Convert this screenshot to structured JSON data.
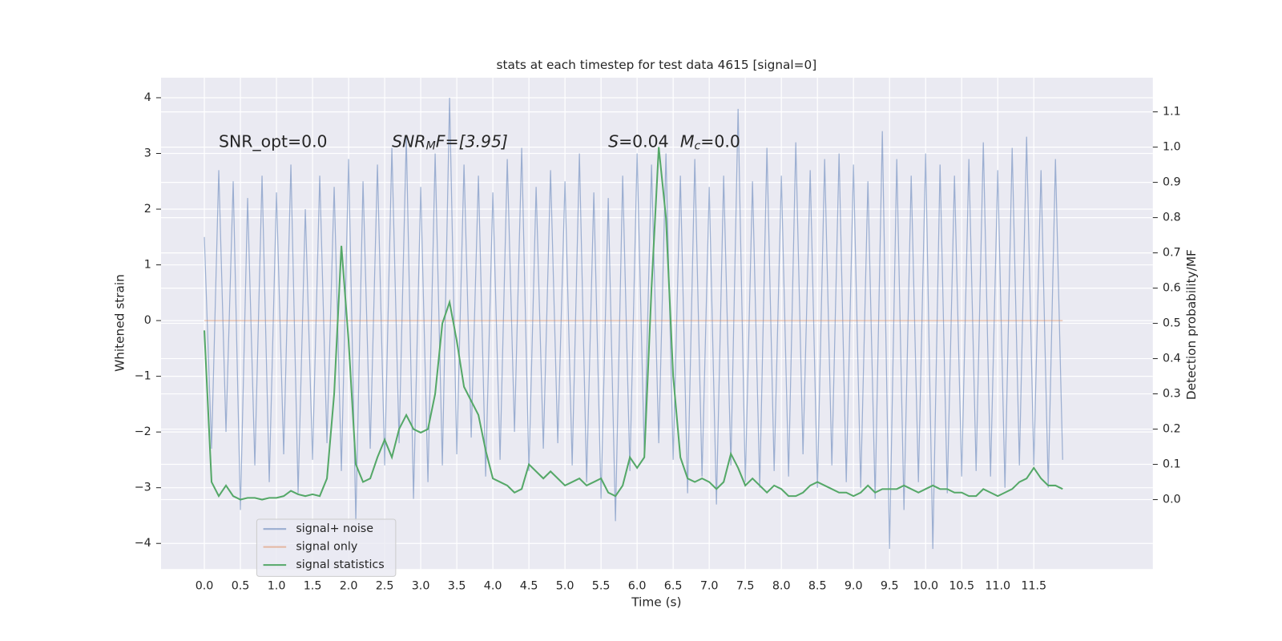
{
  "chart_data": {
    "type": "line",
    "title": "stats at each timestep for test data 4615 [signal=0]",
    "xlabel": "Time (s)",
    "ylabel": "Whitened strain",
    "y2label": "Detection probability/MF",
    "annotations": [
      {
        "parts": [
          "SNR_opt=0.0"
        ],
        "x": 0.2,
        "y": 3.2
      },
      {
        "parts": [
          "SNR",
          "M",
          "F=[3.95]"
        ],
        "x": 2.6,
        "y": 3.2
      },
      {
        "parts": [
          "S",
          "=0.04",
          "M",
          "c",
          "=0.0"
        ],
        "x": 5.6,
        "y": 3.2
      }
    ],
    "x": [
      0.0,
      0.1,
      0.2,
      0.3,
      0.4,
      0.5,
      0.6,
      0.7,
      0.8,
      0.9,
      1.0,
      1.1,
      1.2,
      1.3,
      1.4,
      1.5,
      1.6,
      1.7,
      1.8,
      1.9,
      2.0,
      2.1,
      2.2,
      2.3,
      2.4,
      2.5,
      2.6,
      2.7,
      2.8,
      2.9,
      3.0,
      3.1,
      3.2,
      3.3,
      3.4,
      3.5,
      3.6,
      3.7,
      3.8,
      3.9,
      4.0,
      4.1,
      4.2,
      4.3,
      4.4,
      4.5,
      4.6,
      4.7,
      4.8,
      4.9,
      5.0,
      5.1,
      5.2,
      5.3,
      5.4,
      5.5,
      5.6,
      5.7,
      5.8,
      5.9,
      6.0,
      6.1,
      6.2,
      6.3,
      6.4,
      6.5,
      6.6,
      6.7,
      6.8,
      6.9,
      7.0,
      7.1,
      7.2,
      7.3,
      7.4,
      7.5,
      7.6,
      7.7,
      7.8,
      7.9,
      8.0,
      8.1,
      8.2,
      8.3,
      8.4,
      8.5,
      8.6,
      8.7,
      8.8,
      8.9,
      9.0,
      9.1,
      9.2,
      9.3,
      9.4,
      9.5,
      9.6,
      9.7,
      9.8,
      9.9,
      10.0,
      10.1,
      10.2,
      10.3,
      10.4,
      10.5,
      10.6,
      10.7,
      10.8,
      10.9,
      11.0,
      11.1,
      11.2,
      11.3,
      11.4,
      11.5,
      11.6,
      11.7,
      11.8,
      11.9
    ],
    "series": [
      {
        "name": "signal+ noise",
        "color": "#4c72b0",
        "alpha": 0.5,
        "values": [
          1.5,
          -2.3,
          2.7,
          -2.0,
          2.5,
          -3.4,
          2.2,
          -2.6,
          2.6,
          -2.9,
          2.3,
          -2.4,
          2.8,
          -3.1,
          2.0,
          -2.5,
          2.6,
          -2.2,
          2.4,
          -2.7,
          2.9,
          -3.6,
          2.5,
          -2.3,
          2.8,
          -2.6,
          3.1,
          -2.2,
          3.3,
          -3.2,
          2.4,
          -2.9,
          3.0,
          -2.6,
          4.0,
          -2.4,
          2.8,
          -2.1,
          2.6,
          -2.8,
          2.3,
          -2.5,
          2.9,
          -2.0,
          3.1,
          -2.7,
          2.4,
          -2.3,
          2.7,
          -2.2,
          2.5,
          -2.6,
          3.0,
          -2.9,
          2.3,
          -3.2,
          2.2,
          -3.6,
          2.6,
          -2.7,
          3.0,
          -2.4,
          2.8,
          -2.2,
          3.0,
          -2.5,
          2.6,
          -3.1,
          2.9,
          -2.8,
          2.4,
          -3.3,
          2.6,
          -2.6,
          3.8,
          -2.9,
          2.5,
          -3.0,
          3.1,
          -2.7,
          2.6,
          -2.8,
          3.2,
          -2.4,
          2.7,
          -3.0,
          2.9,
          -2.6,
          3.0,
          -2.9,
          2.8,
          -3.0,
          2.5,
          -3.2,
          3.4,
          -4.1,
          2.9,
          -3.4,
          2.6,
          -2.9,
          3.0,
          -4.1,
          2.8,
          -3.1,
          2.6,
          -2.8,
          2.9,
          -2.7,
          3.2,
          -2.8,
          2.7,
          -3.0,
          3.1,
          -2.6,
          3.3,
          -2.6,
          2.7,
          -3.0,
          2.9,
          -2.5
        ]
      },
      {
        "name": "signal only",
        "color": "#dd8452",
        "alpha": 0.5,
        "values": [
          0,
          0,
          0,
          0,
          0,
          0,
          0,
          0,
          0,
          0,
          0,
          0,
          0,
          0,
          0,
          0,
          0,
          0,
          0,
          0,
          0,
          0,
          0,
          0,
          0,
          0,
          0,
          0,
          0,
          0,
          0,
          0,
          0,
          0,
          0,
          0,
          0,
          0,
          0,
          0,
          0,
          0,
          0,
          0,
          0,
          0,
          0,
          0,
          0,
          0,
          0,
          0,
          0,
          0,
          0,
          0,
          0,
          0,
          0,
          0,
          0,
          0,
          0,
          0,
          0,
          0,
          0,
          0,
          0,
          0,
          0,
          0,
          0,
          0,
          0,
          0,
          0,
          0,
          0,
          0,
          0,
          0,
          0,
          0,
          0,
          0,
          0,
          0,
          0,
          0,
          0,
          0,
          0,
          0,
          0,
          0,
          0,
          0,
          0,
          0,
          0,
          0,
          0,
          0,
          0,
          0,
          0,
          0,
          0,
          0,
          0,
          0,
          0,
          0,
          0,
          0,
          0,
          0,
          0,
          0
        ]
      },
      {
        "name": "signal statistics",
        "color": "#55a868",
        "alpha": 1,
        "axis": "y2",
        "values": [
          0.48,
          0.05,
          0.01,
          0.04,
          0.01,
          0.0,
          0.005,
          0.005,
          0.0,
          0.005,
          0.005,
          0.01,
          0.025,
          0.015,
          0.01,
          0.015,
          0.01,
          0.06,
          0.3,
          0.72,
          0.45,
          0.1,
          0.05,
          0.06,
          0.12,
          0.17,
          0.12,
          0.2,
          0.24,
          0.2,
          0.19,
          0.2,
          0.3,
          0.5,
          0.56,
          0.45,
          0.32,
          0.28,
          0.24,
          0.14,
          0.06,
          0.05,
          0.04,
          0.02,
          0.03,
          0.1,
          0.08,
          0.06,
          0.08,
          0.06,
          0.04,
          0.05,
          0.06,
          0.04,
          0.05,
          0.06,
          0.02,
          0.01,
          0.04,
          0.12,
          0.09,
          0.12,
          0.6,
          1.0,
          0.8,
          0.35,
          0.12,
          0.06,
          0.05,
          0.06,
          0.05,
          0.03,
          0.05,
          0.13,
          0.09,
          0.04,
          0.06,
          0.04,
          0.02,
          0.04,
          0.03,
          0.01,
          0.01,
          0.02,
          0.04,
          0.05,
          0.04,
          0.03,
          0.02,
          0.02,
          0.01,
          0.02,
          0.04,
          0.02,
          0.03,
          0.03,
          0.03,
          0.04,
          0.03,
          0.02,
          0.03,
          0.04,
          0.03,
          0.03,
          0.02,
          0.02,
          0.01,
          0.01,
          0.03,
          0.02,
          0.01,
          0.02,
          0.03,
          0.05,
          0.06,
          0.09,
          0.06,
          0.04,
          0.04,
          0.03
        ]
      }
    ],
    "xlim": [
      -0.6,
      13.15
    ],
    "xticks": [
      {
        "value": 0,
        "label": "0.0"
      },
      0.5,
      {
        "value": 1,
        "label": "1.0"
      },
      1.5,
      {
        "value": 2,
        "label": "2.0"
      },
      2.5,
      {
        "value": 3,
        "label": "3.0"
      },
      3.5,
      {
        "value": 4,
        "label": "4.0"
      },
      4.5,
      {
        "value": 5,
        "label": "5.0"
      },
      5.5,
      {
        "value": 6,
        "label": "6.0"
      },
      6.5,
      {
        "value": 7,
        "label": "7.0"
      },
      7.5,
      {
        "value": 8,
        "label": "8.0"
      },
      8.5,
      {
        "value": 9,
        "label": "9.0"
      },
      9.5,
      {
        "value": 10,
        "label": "10.0"
      },
      10.5,
      {
        "value": 11,
        "label": "11.0"
      },
      11.5
    ],
    "ylim": [
      -4.46,
      4.36
    ],
    "yticks": [
      {
        "value": -4,
        "label": "−4"
      },
      {
        "value": -3,
        "label": "−3"
      },
      {
        "value": -2,
        "label": "−2"
      },
      {
        "value": -1,
        "label": "−1"
      },
      0,
      1,
      2,
      3,
      4
    ],
    "y2lim": [
      -0.197,
      1.197
    ],
    "y2ticks": [
      {
        "value": 0,
        "label": "0.0"
      },
      0.1,
      0.2,
      0.3,
      0.4,
      0.5,
      0.6,
      0.7,
      0.8,
      0.9,
      {
        "value": 1,
        "label": "1.0"
      },
      1.1
    ],
    "grid": true,
    "legend": "lower left"
  }
}
